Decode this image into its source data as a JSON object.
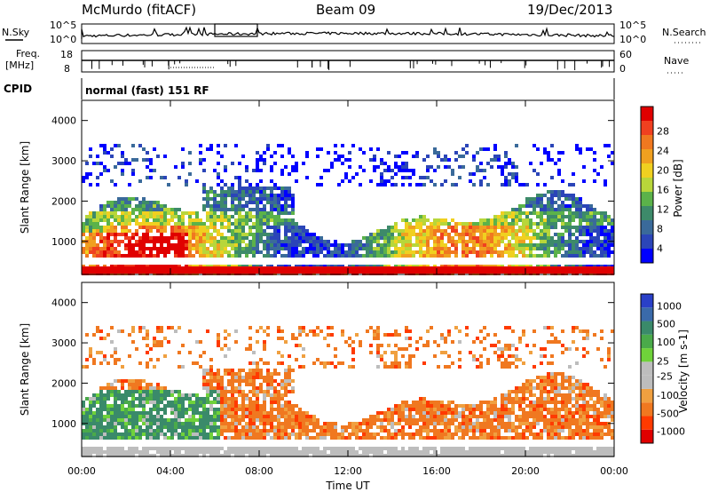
{
  "header": {
    "station": "McMurdo (fitACF)",
    "beam": "Beam 09",
    "date": "19/Dec/2013"
  },
  "top_panels": {
    "nsky_label": "N.Sky",
    "nsky_tick_high": "10^5",
    "nsky_tick_low": "10^0",
    "nsearch_label": "N.Search",
    "nsearch_tick_high": "10^5",
    "nsearch_tick_low": "10^0",
    "freq_label_line1": "Freq.",
    "freq_label_line2": "[MHz]",
    "freq_tick_high": "18",
    "freq_tick_low": "8",
    "nave_label": "Nave",
    "nave_tick_high": "60",
    "nave_tick_low": "0",
    "cpid_label": "CPID",
    "cpid_text": "normal (fast) 151 RF"
  },
  "colors": {
    "power_scale": [
      "#0000ff",
      "#2b45b8",
      "#3a6a9a",
      "#3d8a6a",
      "#5bb24a",
      "#b8d63a",
      "#f0d020",
      "#f0a020",
      "#f07820",
      "#f04020",
      "#e00000"
    ],
    "velocity_scale": [
      "#e00000",
      "#ff3a00",
      "#f07820",
      "#f0a040",
      "#bdbdbd",
      "#bdbdbd",
      "#6fd23a",
      "#4aaa4a",
      "#3a8a6a",
      "#3a6aaa",
      "#2a40c8"
    ]
  },
  "chart_data": [
    {
      "type": "heatmap",
      "title": "Power",
      "ylabel": "Slant Range [km]",
      "xlabel": "",
      "ylim": [
        180,
        4500
      ],
      "x_ticks": [
        "00:00",
        "04:00",
        "08:00",
        "12:00",
        "16:00",
        "20:00",
        "00:00"
      ],
      "y_ticks": [
        1000,
        2000,
        3000,
        4000
      ],
      "colorbar": {
        "label": "Power [dB]",
        "ticks": [
          4,
          8,
          12,
          16,
          20,
          24,
          28
        ]
      }
    },
    {
      "type": "heatmap",
      "title": "Velocity",
      "ylabel": "Slant Range [km]",
      "xlabel": "Time UT",
      "ylim": [
        180,
        4500
      ],
      "x_ticks": [
        "00:00",
        "04:00",
        "08:00",
        "12:00",
        "16:00",
        "20:00",
        "00:00"
      ],
      "y_ticks": [
        1000,
        2000,
        3000,
        4000
      ],
      "colorbar": {
        "label": "Velocity [m s-1]",
        "ticks": [
          "1000",
          "500",
          "100",
          "25",
          "-25",
          "-100",
          "-500",
          "-1000"
        ]
      }
    }
  ]
}
